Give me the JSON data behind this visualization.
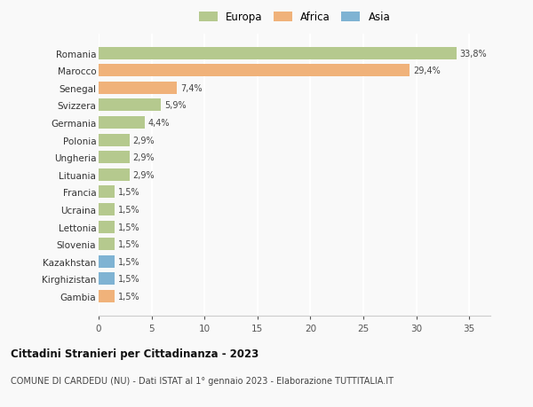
{
  "countries": [
    "Romania",
    "Marocco",
    "Senegal",
    "Svizzera",
    "Germania",
    "Polonia",
    "Ungheria",
    "Lituania",
    "Francia",
    "Ucraina",
    "Lettonia",
    "Slovenia",
    "Kazakhstan",
    "Kirghizistan",
    "Gambia"
  ],
  "values": [
    33.8,
    29.4,
    7.4,
    5.9,
    4.4,
    2.9,
    2.9,
    2.9,
    1.5,
    1.5,
    1.5,
    1.5,
    1.5,
    1.5,
    1.5
  ],
  "labels": [
    "33,8%",
    "29,4%",
    "7,4%",
    "5,9%",
    "4,4%",
    "2,9%",
    "2,9%",
    "2,9%",
    "1,5%",
    "1,5%",
    "1,5%",
    "1,5%",
    "1,5%",
    "1,5%",
    "1,5%"
  ],
  "continents": [
    "Europa",
    "Africa",
    "Africa",
    "Europa",
    "Europa",
    "Europa",
    "Europa",
    "Europa",
    "Europa",
    "Europa",
    "Europa",
    "Europa",
    "Asia",
    "Asia",
    "Africa"
  ],
  "colors": {
    "Europa": "#b5c98e",
    "Africa": "#f0b27a",
    "Asia": "#7fb3d3"
  },
  "xlim": [
    0,
    37
  ],
  "xticks": [
    0,
    5,
    10,
    15,
    20,
    25,
    30,
    35
  ],
  "title": "Cittadini Stranieri per Cittadinanza - 2023",
  "subtitle": "COMUNE DI CARDEDU (NU) - Dati ISTAT al 1° gennaio 2023 - Elaborazione TUTTITALIA.IT",
  "background_color": "#f9f9f9",
  "grid_color": "#ffffff",
  "bar_height": 0.72
}
